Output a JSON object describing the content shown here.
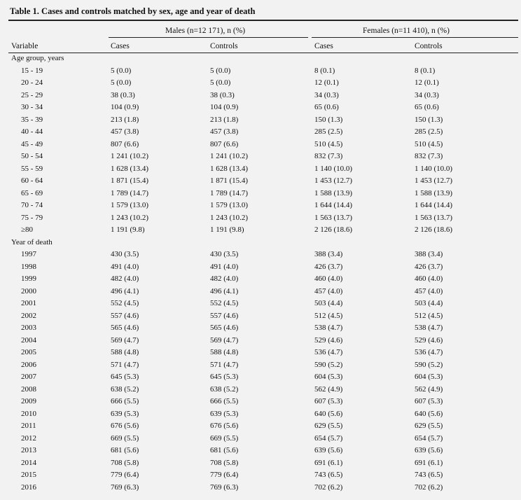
{
  "title": "Table 1. Cases and controls matched by sex, age and year of death",
  "groups": [
    "Males (n=12 171), n (%)",
    "Females (n=11 410), n (%)"
  ],
  "columns": [
    "Variable",
    "Cases",
    "Controls",
    "Cases",
    "Controls"
  ],
  "sections": [
    {
      "title": "Age group, years",
      "rows": [
        [
          "15 - 19",
          "5 (0.0)",
          "5 (0.0)",
          "8 (0.1)",
          "8 (0.1)"
        ],
        [
          "20 - 24",
          "5 (0.0)",
          "5 (0.0)",
          "12 (0.1)",
          "12 (0.1)"
        ],
        [
          "25 - 29",
          "38 (0.3)",
          "38 (0.3)",
          "34 (0.3)",
          "34 (0.3)"
        ],
        [
          "30 - 34",
          "104 (0.9)",
          "104 (0.9)",
          "65 (0.6)",
          "65 (0.6)"
        ],
        [
          "35 - 39",
          "213 (1.8)",
          "213 (1.8)",
          "150 (1.3)",
          "150 (1.3)"
        ],
        [
          "40 - 44",
          "457 (3.8)",
          "457 (3.8)",
          "285 (2.5)",
          "285 (2.5)"
        ],
        [
          "45 - 49",
          "807 (6.6)",
          "807 (6.6)",
          "510 (4.5)",
          "510 (4.5)"
        ],
        [
          "50 - 54",
          "1 241 (10.2)",
          "1 241 (10.2)",
          "832 (7.3)",
          "832 (7.3)"
        ],
        [
          "55 - 59",
          "1 628 (13.4)",
          "1 628 (13.4)",
          "1 140 (10.0)",
          "1 140 (10.0)"
        ],
        [
          "60 - 64",
          "1 871 (15.4)",
          "1 871 (15.4)",
          "1 453 (12.7)",
          "1 453 (12.7)"
        ],
        [
          "65 - 69",
          "1 789 (14.7)",
          "1 789 (14.7)",
          "1 588 (13.9)",
          "1 588 (13.9)"
        ],
        [
          "70 - 74",
          "1 579 (13.0)",
          "1 579 (13.0)",
          "1 644 (14.4)",
          "1 644 (14.4)"
        ],
        [
          "75 - 79",
          "1 243 (10.2)",
          "1 243 (10.2)",
          "1 563 (13.7)",
          "1 563 (13.7)"
        ],
        [
          "≥80",
          "1 191 (9.8)",
          "1 191 (9.8)",
          "2 126 (18.6)",
          "2 126 (18.6)"
        ]
      ]
    },
    {
      "title": "Year of death",
      "rows": [
        [
          "1997",
          "430 (3.5)",
          "430 (3.5)",
          "388 (3.4)",
          "388 (3.4)"
        ],
        [
          "1998",
          "491 (4.0)",
          "491 (4.0)",
          "426 (3.7)",
          "426 (3.7)"
        ],
        [
          "1999",
          "482 (4.0)",
          "482 (4.0)",
          "460 (4.0)",
          "460 (4.0)"
        ],
        [
          "2000",
          "496 (4.1)",
          "496 (4.1)",
          "457 (4.0)",
          "457 (4.0)"
        ],
        [
          "2001",
          "552 (4.5)",
          "552 (4.5)",
          "503 (4.4)",
          "503 (4.4)"
        ],
        [
          "2002",
          "557 (4.6)",
          "557 (4.6)",
          "512 (4.5)",
          "512 (4.5)"
        ],
        [
          "2003",
          "565 (4.6)",
          "565 (4.6)",
          "538 (4.7)",
          "538 (4.7)"
        ],
        [
          "2004",
          "569 (4.7)",
          "569 (4.7)",
          "529 (4.6)",
          "529 (4.6)"
        ],
        [
          "2005",
          "588 (4.8)",
          "588 (4.8)",
          "536 (4.7)",
          "536 (4.7)"
        ],
        [
          "2006",
          "571 (4.7)",
          "571 (4.7)",
          "590 (5.2)",
          "590 (5.2)"
        ],
        [
          "2007",
          "645 (5.3)",
          "645 (5.3)",
          "604 (5.3)",
          "604 (5.3)"
        ],
        [
          "2008",
          "638 (5.2)",
          "638 (5.2)",
          "562 (4.9)",
          "562 (4.9)"
        ],
        [
          "2009",
          "666 (5.5)",
          "666 (5.5)",
          "607 (5.3)",
          "607 (5.3)"
        ],
        [
          "2010",
          "639 (5.3)",
          "639 (5.3)",
          "640 (5.6)",
          "640 (5.6)"
        ],
        [
          "2011",
          "676 (5.6)",
          "676 (5.6)",
          "629 (5.5)",
          "629 (5.5)"
        ],
        [
          "2012",
          "669 (5.5)",
          "669 (5.5)",
          "654 (5.7)",
          "654 (5.7)"
        ],
        [
          "2013",
          "681 (5.6)",
          "681 (5.6)",
          "639 (5.6)",
          "639 (5.6)"
        ],
        [
          "2014",
          "708 (5.8)",
          "708 (5.8)",
          "691 (6.1)",
          "691 (6.1)"
        ],
        [
          "2015",
          "779 (6.4)",
          "779 (6.4)",
          "743 (6.5)",
          "743 (6.5)"
        ],
        [
          "2016",
          "769 (6.3)",
          "769 (6.3)",
          "702 (6.2)",
          "702 (6.2)"
        ]
      ]
    }
  ]
}
